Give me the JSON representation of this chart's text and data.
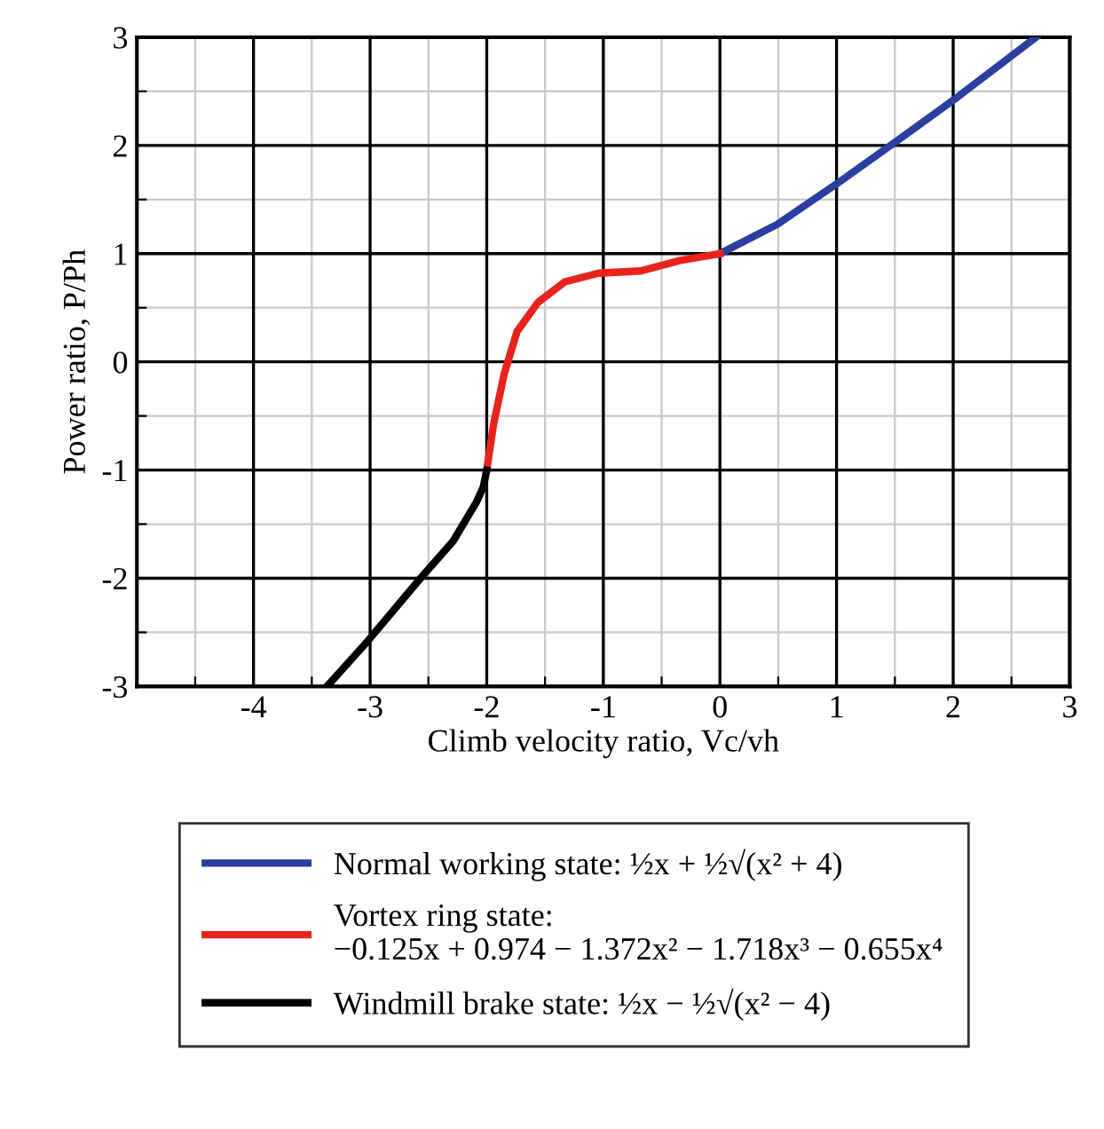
{
  "chart_data": {
    "type": "line",
    "xlabel": "Climb velocity ratio, Vc/vh",
    "ylabel": "Power ratio, P/Ph",
    "xlim": [
      -5,
      3
    ],
    "ylim": [
      -3,
      3
    ],
    "xticks": [
      {
        "value": -5,
        "label": null
      },
      {
        "value": -4.5,
        "label": null
      },
      -4,
      {
        "value": -3.5,
        "label": null
      },
      -3,
      {
        "value": -2.5,
        "label": null
      },
      -2,
      {
        "value": -1.5,
        "label": null
      },
      -1,
      {
        "value": -0.5,
        "label": null
      },
      0,
      {
        "value": 0.5,
        "label": null
      },
      1,
      {
        "value": 1.5,
        "label": null
      },
      2,
      {
        "value": 2.5,
        "label": null
      },
      3
    ],
    "yticks": [
      -3,
      {
        "value": -2.5,
        "label": null
      },
      -2,
      {
        "value": -1.5,
        "label": null
      },
      -1,
      {
        "value": -0.5,
        "label": null
      },
      0,
      {
        "value": 0.5,
        "label": null
      },
      1,
      {
        "value": 1.5,
        "label": null
      },
      2,
      {
        "value": 2.5,
        "label": null
      },
      3
    ],
    "grid": true,
    "legend": "bottom",
    "marker": "none",
    "line_style": "solid",
    "series": [
      {
        "name": "Normal working state: ½x + ½√(x² + 4)",
        "color": "#2a3fa0",
        "x": [
          0,
          0.49,
          1.02,
          1.54,
          2.04,
          2.71
        ],
        "values": [
          1,
          1.27,
          1.66,
          2.06,
          2.45,
          3.0
        ]
      },
      {
        "name": "Vortex ring state:\n−0.125x + 0.974 − 1.372x² − 1.718x³ − 0.655x⁴",
        "color": "#e8231e",
        "x": [
          -2,
          -1.94,
          -1.85,
          -1.74,
          -1.56,
          -1.33,
          -1.04,
          -0.68,
          -0.33,
          0
        ],
        "values": [
          -1,
          -0.57,
          -0.11,
          0.28,
          0.55,
          0.74,
          0.82,
          0.84,
          0.94,
          1
        ]
      },
      {
        "name": "Windmill brake state: ½x − ½√(x² − 4)",
        "color": "#000000",
        "x": [
          -3.37,
          -3.02,
          -2.56,
          -2.29,
          -2.09,
          -2.03,
          -2
        ],
        "values": [
          -3,
          -2.58,
          -1.99,
          -1.66,
          -1.3,
          -1.16,
          -1
        ]
      }
    ]
  }
}
